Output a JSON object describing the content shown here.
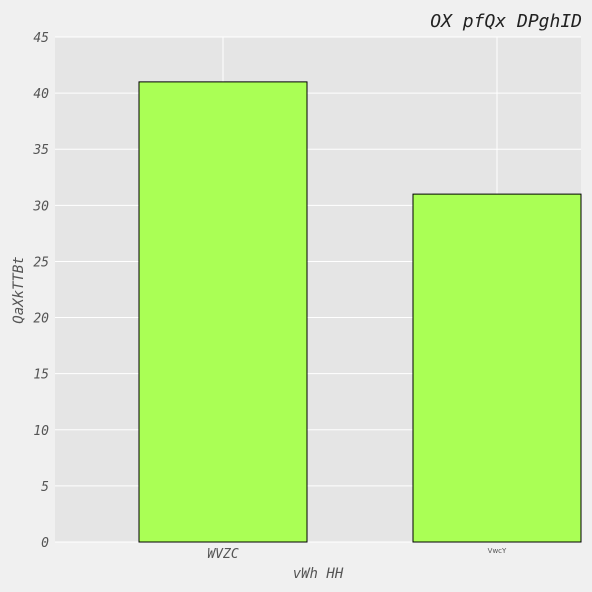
{
  "chart_data": {
    "type": "bar",
    "title": "OX pfQx DPghID",
    "xlabel": "vWh HH",
    "ylabel": "QaXkTTBt",
    "categories": [
      "WVZC",
      "VwcY"
    ],
    "values": [
      41,
      31
    ],
    "ylim": [
      0,
      45
    ],
    "yticks": [
      "0",
      "5",
      "10",
      "15",
      "20",
      "25",
      "30",
      "35",
      "40",
      "45"
    ],
    "bar_color": "#aaff55",
    "grid": true
  }
}
